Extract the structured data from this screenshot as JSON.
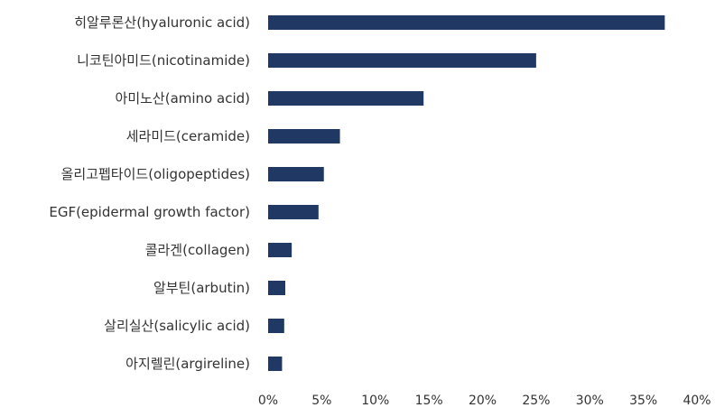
{
  "chart_data": {
    "type": "bar",
    "orientation": "horizontal",
    "categories": [
      "히알루론산(hyaluronic acid)",
      "니코틴아미드(nicotinamide)",
      "아미노산(amino acid)",
      "세라미드(ceramide)",
      "올리고펩타이드(oligopeptides)",
      "EGF(epidermal growth factor)",
      "콜라겐(collagen)",
      "알부틴(arbutin)",
      "살리실산(salicylic acid)",
      "아지렐린(argireline)"
    ],
    "values": [
      37.0,
      25.0,
      14.5,
      6.7,
      5.2,
      4.7,
      2.2,
      1.6,
      1.5,
      1.3
    ],
    "value_unit": "%",
    "xlim": [
      0,
      40
    ],
    "xticks": [
      0,
      5,
      10,
      15,
      20,
      25,
      30,
      35,
      40
    ],
    "xtick_labels": [
      "0%",
      "5%",
      "10%",
      "15%",
      "20%",
      "25%",
      "30%",
      "35%",
      "40%"
    ],
    "grid": false,
    "legend": "none",
    "colors": {
      "bar": "#1f3864",
      "text": "#333333",
      "background": "#ffffff"
    }
  }
}
